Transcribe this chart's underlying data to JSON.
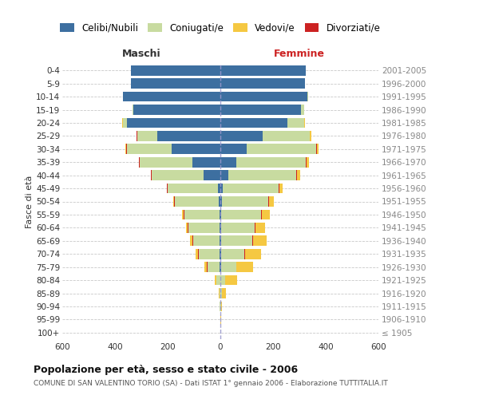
{
  "age_groups": [
    "100+",
    "95-99",
    "90-94",
    "85-89",
    "80-84",
    "75-79",
    "70-74",
    "65-69",
    "60-64",
    "55-59",
    "50-54",
    "45-49",
    "40-44",
    "35-39",
    "30-34",
    "25-29",
    "20-24",
    "15-19",
    "10-14",
    "5-9",
    "0-4"
  ],
  "birth_years": [
    "≤ 1905",
    "1906-1910",
    "1911-1915",
    "1916-1920",
    "1921-1925",
    "1926-1930",
    "1931-1935",
    "1936-1940",
    "1941-1945",
    "1946-1950",
    "1951-1955",
    "1956-1960",
    "1961-1965",
    "1966-1970",
    "1971-1975",
    "1976-1980",
    "1981-1985",
    "1986-1990",
    "1991-1995",
    "1996-2000",
    "2001-2005"
  ],
  "males_celibi": [
    0,
    0,
    0,
    0,
    0,
    2,
    2,
    3,
    3,
    4,
    5,
    10,
    65,
    105,
    185,
    240,
    355,
    330,
    370,
    340,
    340
  ],
  "males_coniugati": [
    0,
    0,
    2,
    4,
    14,
    48,
    80,
    100,
    118,
    132,
    168,
    190,
    195,
    200,
    170,
    75,
    15,
    2,
    0,
    0,
    0
  ],
  "males_vedovi": [
    0,
    0,
    1,
    3,
    8,
    10,
    10,
    10,
    8,
    5,
    3,
    2,
    2,
    2,
    2,
    2,
    2,
    0,
    0,
    0,
    0
  ],
  "males_divorziati": [
    0,
    0,
    0,
    0,
    0,
    2,
    2,
    2,
    2,
    3,
    3,
    2,
    3,
    3,
    3,
    2,
    0,
    0,
    0,
    0,
    0
  ],
  "females_nubili": [
    0,
    0,
    0,
    0,
    0,
    2,
    3,
    3,
    3,
    4,
    5,
    8,
    30,
    60,
    100,
    160,
    255,
    305,
    330,
    320,
    325
  ],
  "females_coniugate": [
    0,
    0,
    2,
    5,
    18,
    58,
    88,
    118,
    128,
    152,
    178,
    212,
    258,
    265,
    265,
    178,
    62,
    12,
    3,
    0,
    0
  ],
  "females_vedove": [
    0,
    2,
    5,
    15,
    45,
    63,
    63,
    53,
    38,
    28,
    18,
    12,
    10,
    8,
    6,
    5,
    3,
    2,
    0,
    0,
    0
  ],
  "females_divorziate": [
    0,
    0,
    0,
    0,
    0,
    2,
    2,
    3,
    2,
    3,
    3,
    4,
    4,
    3,
    3,
    2,
    0,
    0,
    0,
    0,
    0
  ],
  "color_celibi": "#3d6fa0",
  "color_coniugati": "#c8dba0",
  "color_vedovi": "#f5c842",
  "color_divorziati": "#cc2222",
  "xlim": 600,
  "xtick_vals": [
    -600,
    -400,
    -200,
    0,
    200,
    400,
    600
  ],
  "title": "Popolazione per età, sesso e stato civile - 2006",
  "subtitle": "COMUNE DI SAN VALENTINO TORIO (SA) - Dati ISTAT 1° gennaio 2006 - Elaborazione TUTTITALIA.IT",
  "ylabel_left": "Fasce di età",
  "label_maschi": "Maschi",
  "label_femmine": "Femmine",
  "legend_labels": [
    "Celibi/Nubili",
    "Coniugati/e",
    "Vedovi/e",
    "Divorziati/e"
  ],
  "bg_color": "#ffffff",
  "grid_color": "#bbbbbb"
}
